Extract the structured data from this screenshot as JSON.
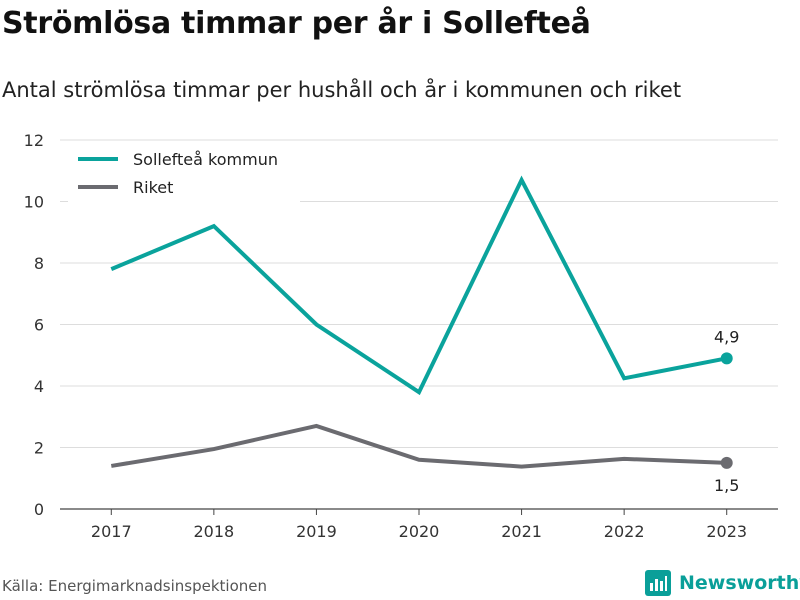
{
  "title": "Strömlösa timmar per år i Sollefteå",
  "subtitle": "Antal strömlösa timmar per hushåll och år i kommunen och riket",
  "source": "Källa: Energimarknadsinspektionen",
  "brand": {
    "name": "Newsworthy",
    "icon": "newsworthy-logo-icon",
    "color": "#0a9f99"
  },
  "chart_data": {
    "type": "line",
    "x": [
      "2017",
      "2018",
      "2019",
      "2020",
      "2021",
      "2022",
      "2023"
    ],
    "series": [
      {
        "name": "Sollefteå kommun",
        "color": "#0aa39c",
        "values": [
          7.8,
          9.2,
          6.0,
          3.8,
          10.7,
          4.25,
          4.9
        ],
        "end_label": "4,9"
      },
      {
        "name": "Riket",
        "color": "#6b6b70",
        "values": [
          1.4,
          1.95,
          2.7,
          1.6,
          1.38,
          1.63,
          1.5
        ],
        "end_label": "1,5"
      }
    ],
    "ylim": [
      0,
      12
    ],
    "yticks": [
      0,
      2,
      4,
      6,
      8,
      10,
      12
    ],
    "grid": true,
    "legend": "top-left"
  }
}
